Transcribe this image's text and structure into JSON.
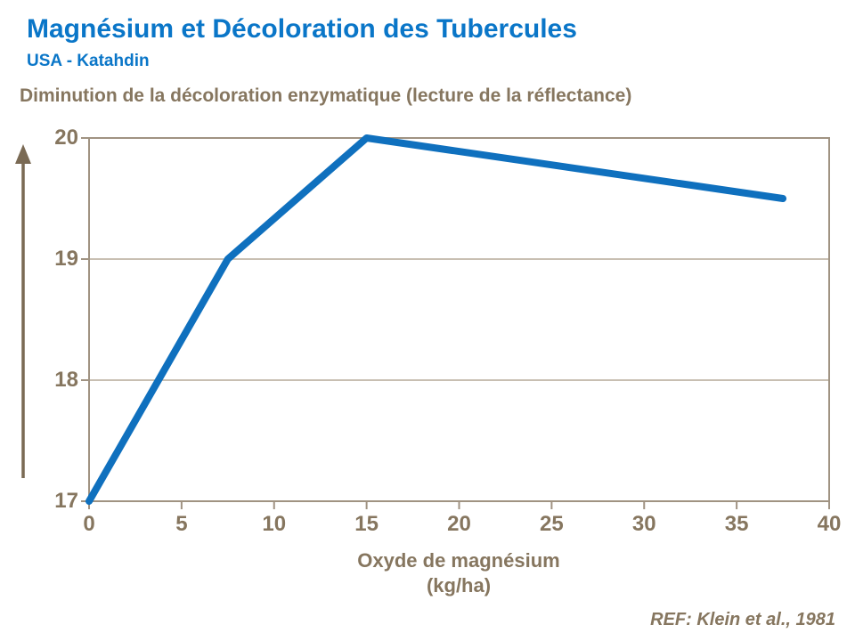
{
  "header": {
    "title": "Magnésium et Décoloration des Tubercules",
    "subtitle": "USA - Katahdin"
  },
  "chart_data": {
    "type": "line",
    "title": "Diminution de la décoloration enzymatique (lecture de la réflectance)",
    "xlabel": "Oxyde de magnésium (kg/ha)",
    "xlabel_line1": "Oxyde de magnésium",
    "xlabel_line2": "(kg/ha)",
    "ylabel": "",
    "series": [
      {
        "name": "réflectance",
        "x": [
          0,
          7.5,
          15,
          37.5
        ],
        "y": [
          17,
          19,
          20,
          19.5
        ]
      }
    ],
    "xlim": [
      0,
      40
    ],
    "ylim": [
      17,
      20
    ],
    "x_ticks": [
      0,
      5,
      10,
      15,
      20,
      25,
      30,
      35,
      40
    ],
    "y_ticks": [
      17,
      18,
      19,
      20
    ],
    "grid": "horizontal-only",
    "legend_position": "none",
    "line_color": "#0F70BE"
  },
  "footer": {
    "ref": "REF: Klein et al., 1981"
  },
  "colors": {
    "title_blue": "#0A76C8",
    "line_blue": "#0F70BE",
    "text_brown": "#86765F",
    "axis_tan": "#A09382",
    "grid_tan": "#B5AA99",
    "arrow_brown": "#7A6A54"
  }
}
